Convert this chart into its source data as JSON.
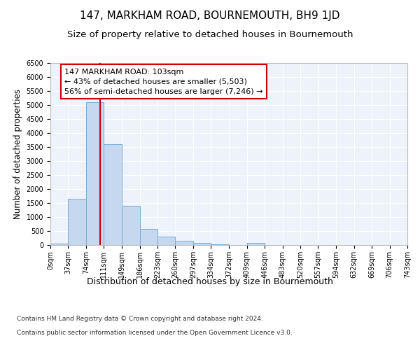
{
  "title": "147, MARKHAM ROAD, BOURNEMOUTH, BH9 1JD",
  "subtitle": "Size of property relative to detached houses in Bournemouth",
  "xlabel": "Distribution of detached houses by size in Bournemouth",
  "ylabel": "Number of detached properties",
  "footer_line1": "Contains HM Land Registry data © Crown copyright and database right 2024.",
  "footer_line2": "Contains public sector information licensed under the Open Government Licence v3.0.",
  "bin_edges": [
    0,
    37,
    74,
    111,
    149,
    186,
    223,
    260,
    297,
    334,
    372,
    409,
    446,
    483,
    520,
    557,
    594,
    632,
    669,
    706,
    743
  ],
  "bin_counts": [
    50,
    1650,
    5100,
    3600,
    1400,
    580,
    300,
    150,
    80,
    15,
    10,
    80,
    10,
    10,
    10,
    10,
    10,
    10,
    10,
    10
  ],
  "bar_color": "#c5d8f0",
  "bar_edge_color": "#7aadd4",
  "property_size": 103,
  "red_line_color": "#cc0000",
  "annotation_line1": "147 MARKHAM ROAD: 103sqm",
  "annotation_line2": "← 43% of detached houses are smaller (5,503)",
  "annotation_line3": "56% of semi-detached houses are larger (7,246) →",
  "ylim": [
    0,
    6500
  ],
  "yticks": [
    0,
    500,
    1000,
    1500,
    2000,
    2500,
    3000,
    3500,
    4000,
    4500,
    5000,
    5500,
    6000,
    6500
  ],
  "bg_color": "#eef2fb",
  "grid_color": "#ffffff",
  "title_fontsize": 11,
  "subtitle_fontsize": 9.5,
  "ylabel_fontsize": 8.5,
  "xlabel_fontsize": 9,
  "tick_fontsize": 7,
  "annotation_fontsize": 8,
  "footer_fontsize": 6.5
}
